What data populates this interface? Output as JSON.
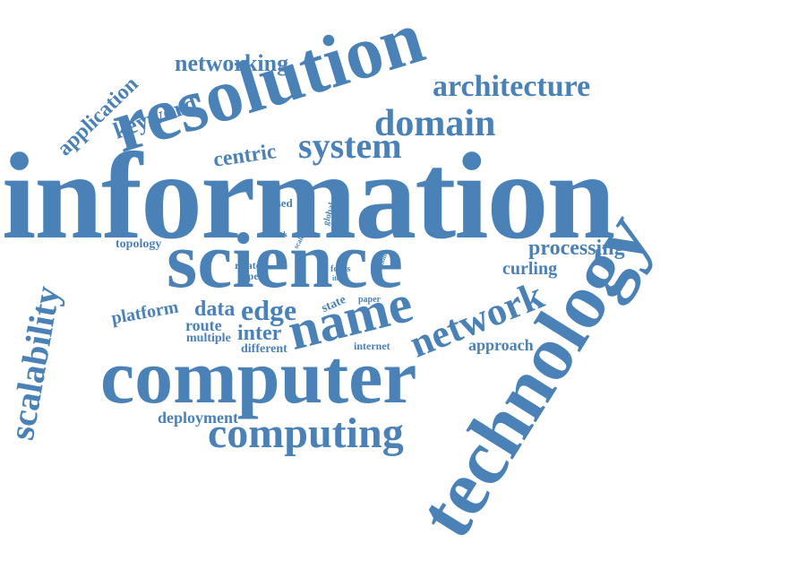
{
  "word_cloud": {
    "color": "#4a82b8",
    "words": [
      {
        "id": "information",
        "text": "information"
      },
      {
        "id": "resolution",
        "text": "resolution"
      },
      {
        "id": "technology",
        "text": "technology"
      },
      {
        "id": "science",
        "text": "science"
      },
      {
        "id": "computer",
        "text": "computer"
      },
      {
        "id": "name",
        "text": "name"
      },
      {
        "id": "network",
        "text": "network"
      },
      {
        "id": "scalability",
        "text": "scalability"
      },
      {
        "id": "computing",
        "text": "computing"
      },
      {
        "id": "domain",
        "text": "domain"
      },
      {
        "id": "system",
        "text": "system"
      },
      {
        "id": "architecture",
        "text": "architecture"
      },
      {
        "id": "networking",
        "text": "networking"
      },
      {
        "id": "keyword",
        "text": "keyword"
      },
      {
        "id": "application",
        "text": "application"
      },
      {
        "id": "centric",
        "text": "centric"
      },
      {
        "id": "processing",
        "text": "processing"
      },
      {
        "id": "edge",
        "text": "edge"
      },
      {
        "id": "data",
        "text": "data"
      },
      {
        "id": "inter",
        "text": "inter"
      },
      {
        "id": "platform",
        "text": "platform"
      },
      {
        "id": "route",
        "text": "route"
      },
      {
        "id": "deployment",
        "text": "deployment"
      },
      {
        "id": "curling",
        "text": "curling"
      },
      {
        "id": "approach",
        "text": "approach"
      },
      {
        "id": "topology",
        "text": "topology"
      },
      {
        "id": "multiple",
        "text": "multiple"
      },
      {
        "id": "different",
        "text": "different"
      },
      {
        "id": "state",
        "text": "state"
      },
      {
        "id": "based",
        "text": "based"
      },
      {
        "id": "related",
        "text": "related"
      },
      {
        "id": "aspect",
        "text": "aspect"
      },
      {
        "id": "internet",
        "text": "internet"
      },
      {
        "id": "focus",
        "text": "focus"
      },
      {
        "id": "item",
        "text": "item"
      },
      {
        "id": "paper",
        "text": "paper"
      },
      {
        "id": "global",
        "text": "global"
      },
      {
        "id": "work",
        "text": "work"
      },
      {
        "id": "scale",
        "text": "scale"
      },
      {
        "id": "dona",
        "text": "dona"
      }
    ]
  }
}
